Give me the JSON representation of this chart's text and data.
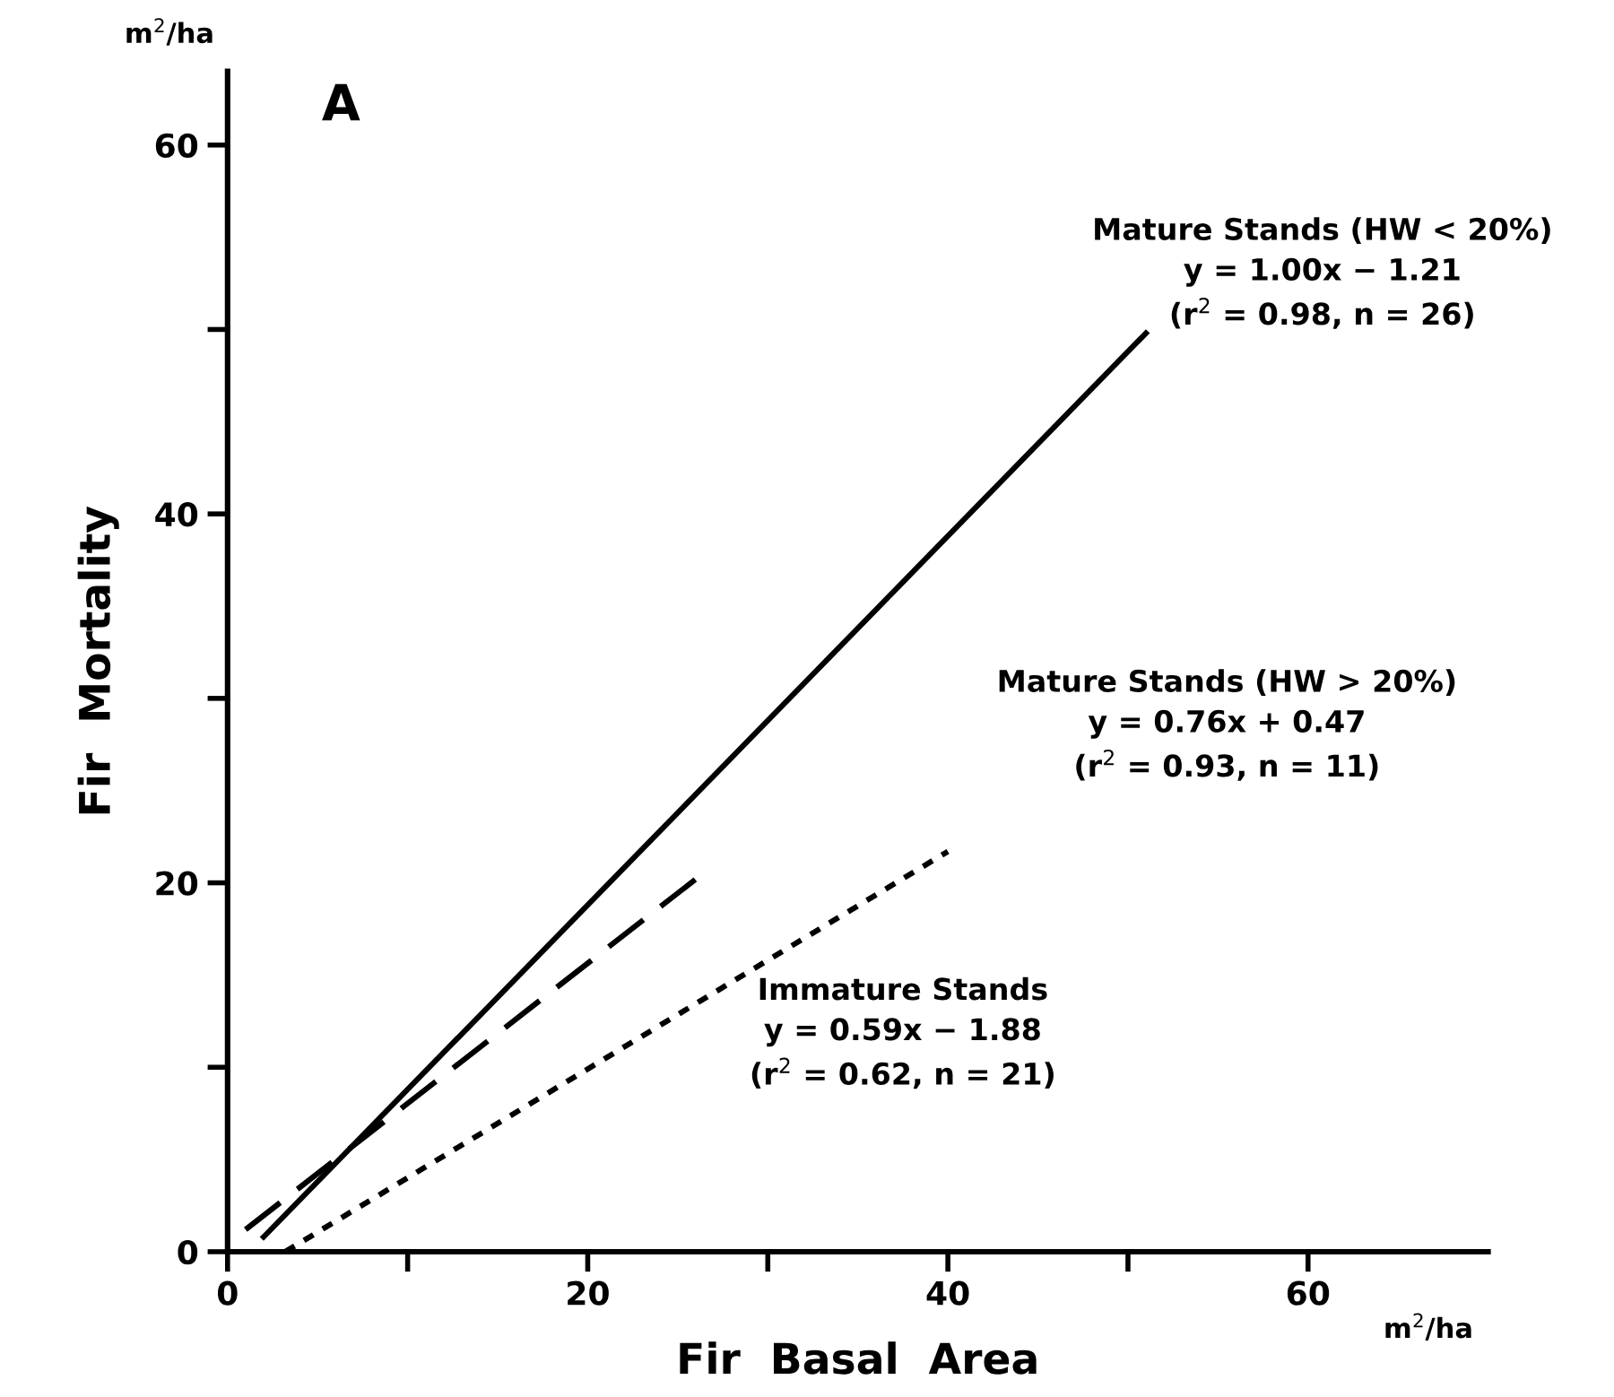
{
  "chart_data": {
    "type": "line",
    "xlabel": "Fir  Basal  Area",
    "ylabel": "Fir  Mortality",
    "xlim": [
      0,
      70
    ],
    "ylim": [
      0,
      64
    ],
    "xticks": [
      0,
      {
        "value": 10,
        "label": null
      },
      20,
      {
        "value": 30,
        "label": null
      },
      40,
      {
        "value": 50,
        "label": null
      },
      60
    ],
    "yticks": [
      0,
      {
        "value": 10,
        "label": null
      },
      20,
      {
        "value": 30,
        "label": null
      },
      40,
      {
        "value": 50,
        "label": null
      },
      60
    ],
    "grid": false,
    "legend": false,
    "marker": "none",
    "series": [
      {
        "color": "#000000",
        "line_style": "solid",
        "x": [
          2,
          51
        ],
        "values": [
          0.8,
          49.8
        ]
      },
      {
        "color": "#000000",
        "line_style": "dashed",
        "x": [
          1,
          26
        ],
        "values": [
          1.2,
          20.2
        ]
      },
      {
        "color": "#000000",
        "line_style": "dotted",
        "x": [
          3.2,
          40
        ],
        "values": [
          0,
          21.7
        ]
      }
    ],
    "annotations": [
      "A",
      "m$^{2}$/ha",
      "m$^{2}$/ha",
      "Mature Stands (HW < 20%)\ny = 1.00x − 1.21\n(r$^{2}$ = 0.98, n = 26)",
      "Mature Stands (HW > 20%)\ny = 0.76x + 0.47\n(r$^{2}$ = 0.93, n = 11)",
      "Immature Stands\ny = 0.59x − 1.88\n(r$^{2}$ = 0.62, n = 21)"
    ]
  }
}
